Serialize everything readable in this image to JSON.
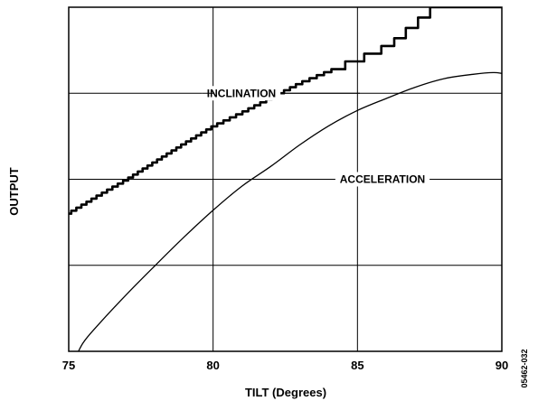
{
  "chart_data": {
    "type": "line",
    "xlabel": "TILT (Degrees)",
    "ylabel": "OUTPUT",
    "xlim": [
      75,
      90
    ],
    "ylim": [
      0,
      4
    ],
    "x_ticks": [
      75,
      80,
      85,
      90
    ],
    "x_tick_labels": [
      "75",
      "80",
      "85",
      "90"
    ],
    "y_gridlines": [
      1,
      2,
      3
    ],
    "grid": true,
    "series": [
      {
        "name": "INCLINATION",
        "style": "thick staircase",
        "x": [
          75.0,
          76.0,
          77.0,
          78.0,
          79.0,
          80.0,
          81.0,
          82.0,
          83.0,
          84.0,
          85.0,
          85.8,
          86.4,
          86.95,
          87.5,
          87.9,
          90.0
        ],
        "y": [
          1.6,
          1.8,
          1.99,
          2.2,
          2.41,
          2.61,
          2.77,
          2.94,
          3.11,
          3.25,
          3.38,
          3.5,
          3.62,
          3.78,
          3.93,
          4.15,
          4.15
        ]
      },
      {
        "name": "ACCELERATION",
        "style": "thin smooth",
        "x": [
          75.2,
          75.5,
          76.0,
          77.0,
          78.0,
          79.0,
          80.0,
          81.0,
          82.0,
          83.0,
          84.0,
          85.0,
          86.0,
          87.0,
          88.0,
          89.0,
          89.7,
          90.0
        ],
        "y": [
          -0.1,
          0.1,
          0.3,
          0.66,
          1.0,
          1.33,
          1.64,
          1.92,
          2.15,
          2.4,
          2.62,
          2.8,
          2.94,
          3.07,
          3.17,
          3.22,
          3.24,
          3.23
        ]
      }
    ],
    "annotations": [
      "INCLINATION",
      "ACCELERATION"
    ],
    "figure_id": "05462-032"
  }
}
